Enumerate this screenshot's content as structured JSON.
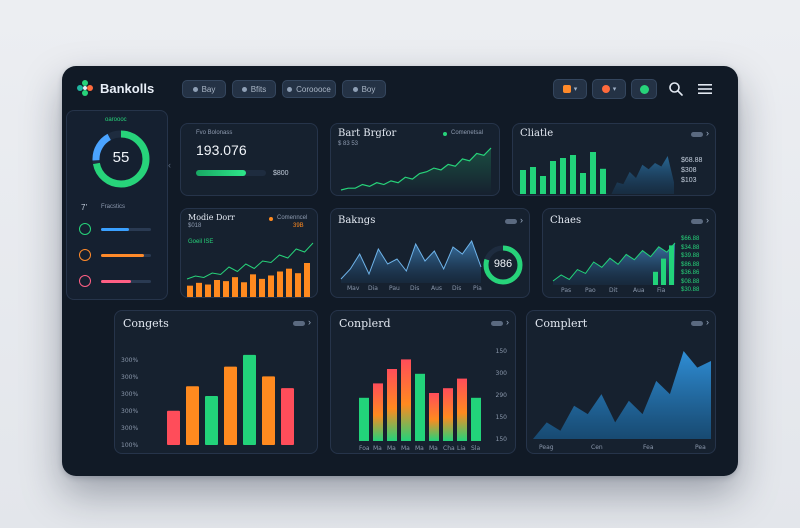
{
  "app": {
    "title": "Bankolls"
  },
  "nav": [
    {
      "label": "Bay"
    },
    {
      "label": "Bfits"
    },
    {
      "label": "Coroooce"
    },
    {
      "label": "Boy"
    }
  ],
  "sidebar": {
    "ring_label": "oaroooc",
    "ring_value": "55",
    "ring_percent": 0.72,
    "section_label": "Fracstics",
    "section_icon_label": "7’",
    "items": [
      {
        "icon": "calendar-icon",
        "color": "#27d37a",
        "fill": 0.55
      },
      {
        "icon": "settings-icon",
        "color": "#ff8a2a",
        "fill": 0.85
      },
      {
        "icon": "user-icon",
        "color": "#ff5f84",
        "fill": 0.6
      }
    ]
  },
  "balance_card": {
    "label": "Fvo Bolonass",
    "value": "193.076",
    "sub_value": "$800",
    "progress": 0.72
  },
  "bank_card": {
    "title": "Bart Brgfor",
    "legend": "Comenetsal",
    "sub": "$ 83 53",
    "chart_data": {
      "type": "line",
      "values": [
        2,
        3,
        3,
        5,
        4,
        6,
        5,
        7,
        6,
        9,
        8,
        11,
        12,
        14,
        13,
        16,
        15,
        19,
        18,
        22,
        21,
        25
      ]
    }
  },
  "clattle_card": {
    "title": "Cliatle",
    "side_values": [
      "$68.88",
      "$308",
      "$103"
    ],
    "chart_data": {
      "type": "bar",
      "values": [
        40,
        45,
        30,
        55,
        60,
        65,
        35,
        70,
        42,
        58,
        50
      ],
      "area": [
        20,
        30,
        25,
        40,
        38,
        52,
        45,
        60,
        55,
        62,
        58,
        70,
        40
      ]
    }
  },
  "motive_card": {
    "title": "Modie Dorr",
    "legend": "Comenncel",
    "legend_value": "39B",
    "sub": "$018",
    "sub2": "Goeil ISE",
    "chart_data": {
      "type": "bar",
      "values": [
        20,
        25,
        22,
        30,
        28,
        35,
        26,
        40,
        32,
        38,
        45,
        50,
        42,
        60
      ],
      "line": [
        10,
        12,
        11,
        14,
        13,
        18,
        15,
        20,
        17,
        22,
        21,
        26,
        24,
        30,
        28,
        34
      ]
    }
  },
  "bakings_card": {
    "title": "Bakngs",
    "ring_value": "986",
    "ring_percent": 0.8,
    "x_labels": [
      "Mav",
      "Dia",
      "Pau",
      "Dis",
      "Aus",
      "Dis",
      "Pia"
    ],
    "chart_data": {
      "type": "area",
      "values": [
        20,
        30,
        45,
        25,
        50,
        35,
        40,
        28,
        55,
        38,
        48,
        30,
        52,
        45,
        58,
        32
      ]
    }
  },
  "chaes_card": {
    "title": "Chaes",
    "side_values": [
      "$66.88",
      "$34.88",
      "$39.88",
      "$86.88",
      "$36.86",
      "$08.88",
      "$30.88"
    ],
    "x_labels": [
      "Pas",
      "Pao",
      "Dit",
      "Aua",
      "Fia"
    ],
    "chart_data": {
      "type": "area",
      "values": [
        20,
        28,
        22,
        35,
        30,
        45,
        38,
        50,
        42,
        55,
        48,
        60,
        52,
        65,
        58,
        70
      ],
      "bars": [
        30,
        60,
        90
      ]
    }
  },
  "congets_card": {
    "title": "Congets",
    "y_labels": [
      "100%",
      "300%",
      "300%",
      "300%",
      "300%",
      "300%"
    ],
    "chart_data": {
      "type": "bar",
      "values": [
        35,
        60,
        50,
        80,
        92,
        70,
        58
      ],
      "colors": [
        "#ff4d5a",
        "#ff8a1f",
        "#22d37a",
        "#ff8a1f",
        "#22d37a",
        "#ff8a1f",
        "#ff4d5a"
      ]
    }
  },
  "conplerd_card": {
    "title": "Conplerd",
    "y_labels": [
      "150",
      "300",
      "290",
      "150",
      "150"
    ],
    "x_labels": [
      "Foa",
      "Ma",
      "Ma",
      "Ma",
      "Ma",
      "Ma",
      "Cha",
      "Lia",
      "Sla"
    ],
    "chart_data": {
      "type": "bar",
      "values": [
        45,
        60,
        75,
        85,
        70,
        50,
        55,
        65,
        45
      ]
    }
  },
  "complert_card": {
    "title": "Complert",
    "x_labels": [
      "Peag",
      "Cen",
      "Fea",
      "Pea"
    ],
    "chart_data": {
      "type": "area",
      "values": [
        35,
        45,
        40,
        55,
        50,
        62,
        45,
        58,
        50,
        70,
        62,
        88,
        78,
        82
      ]
    }
  }
}
